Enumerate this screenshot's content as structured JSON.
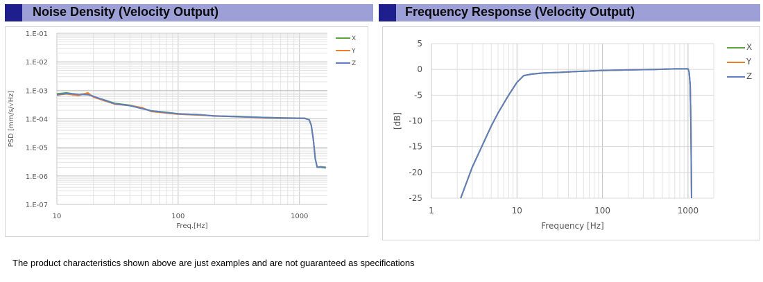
{
  "headers": {
    "left": "Noise Density (Velocity Output)",
    "right": "Frequency Response (Velocity Output)"
  },
  "footnote": "The product characteristics shown above are just examples and are not guaranteed as specifications",
  "chart_data": [
    {
      "type": "line",
      "title": "Noise Density (Velocity Output)",
      "xlabel": "Freq.[Hz]",
      "ylabel": "PSD [mm/s/√Hz]",
      "x_scale": "log",
      "y_scale": "log",
      "xlim": [
        10,
        1700
      ],
      "ylim": [
        1e-07,
        0.1
      ],
      "x_ticks": [
        "10",
        "100",
        "1000"
      ],
      "y_ticks": [
        "1.E-01",
        "1.E-02",
        "1.E-03",
        "1.E-04",
        "1.E-05",
        "1.E-06",
        "1.E-07"
      ],
      "grid": true,
      "legend": "top-right",
      "series": [
        {
          "name": "X",
          "color": "#5aa43c",
          "x": [
            10,
            12,
            15,
            18,
            20,
            25,
            30,
            40,
            50,
            60,
            80,
            100,
            150,
            200,
            300,
            500,
            700,
            1000,
            1100,
            1200,
            1250,
            1300,
            1350,
            1400,
            1500,
            1650
          ],
          "y": [
            0.00075,
            0.00082,
            0.0007,
            0.00078,
            0.0006,
            0.00045,
            0.00035,
            0.0003,
            0.00024,
            0.00019,
            0.00017,
            0.00015,
            0.00014,
            0.000125,
            0.000122,
            0.000112,
            0.000108,
            0.000106,
            0.000106,
            9.5e-05,
            6e-05,
            2e-05,
            4e-06,
            2e-06,
            2.1e-06,
            2e-06
          ]
        },
        {
          "name": "Y",
          "color": "#ed7d31",
          "x": [
            10,
            12,
            15,
            18,
            20,
            25,
            30,
            40,
            50,
            60,
            80,
            100,
            150,
            200,
            300,
            500,
            700,
            1000,
            1100,
            1200,
            1250,
            1300,
            1350,
            1400,
            1500,
            1650
          ],
          "y": [
            0.00068,
            0.00075,
            0.00065,
            0.00082,
            0.00058,
            0.00042,
            0.00033,
            0.00029,
            0.00025,
            0.00018,
            0.00016,
            0.000145,
            0.000135,
            0.000128,
            0.000118,
            0.00011,
            0.000106,
            0.000104,
            0.000105,
            9.4e-05,
            6e-05,
            2e-05,
            4e-06,
            2e-06,
            2e-06,
            1.9e-06
          ]
        },
        {
          "name": "Z",
          "color": "#5b7fbf",
          "x": [
            10,
            12,
            15,
            18,
            20,
            25,
            30,
            40,
            50,
            60,
            80,
            100,
            150,
            200,
            300,
            500,
            700,
            1000,
            1100,
            1200,
            1250,
            1300,
            1350,
            1400,
            1500,
            1650
          ],
          "y": [
            0.0007,
            0.00078,
            0.00072,
            0.0007,
            0.00062,
            0.00044,
            0.00034,
            0.00029,
            0.00023,
            0.00019,
            0.000165,
            0.00015,
            0.00014,
            0.000125,
            0.00012,
            0.000112,
            0.000107,
            0.000105,
            0.000104,
            9.3e-05,
            6e-05,
            2e-05,
            4e-06,
            2e-06,
            2e-06,
            1.9e-06
          ]
        }
      ]
    },
    {
      "type": "line",
      "title": "Frequency Response (Velocity Output)",
      "xlabel": "Frequency [Hz]",
      "ylabel": "[dB]",
      "x_scale": "log",
      "xlim": [
        1,
        2000
      ],
      "ylim": [
        -25,
        5
      ],
      "x_ticks": [
        "1",
        "10",
        "100",
        "1000"
      ],
      "y_ticks": [
        "5",
        "0",
        "-5",
        "-10",
        "-15",
        "-20",
        "-25"
      ],
      "grid": true,
      "legend": "top-right",
      "series": [
        {
          "name": "X",
          "color": "#5aa43c",
          "x": [
            2.2,
            3,
            4,
            5,
            6,
            8,
            10,
            12,
            15,
            20,
            30,
            50,
            100,
            200,
            400,
            700,
            900,
            1000,
            1030,
            1060,
            1080,
            1100
          ],
          "y": [
            -25,
            -19,
            -14.5,
            -11,
            -8.5,
            -5,
            -2.5,
            -1.2,
            -0.9,
            -0.7,
            -0.6,
            -0.4,
            -0.2,
            -0.1,
            0,
            0.1,
            0.1,
            0.1,
            -0.5,
            -3,
            -10,
            -25
          ]
        },
        {
          "name": "Y",
          "color": "#ed7d31",
          "x": [
            2.2,
            3,
            4,
            5,
            6,
            8,
            10,
            12,
            15,
            20,
            30,
            50,
            100,
            200,
            400,
            700,
            900,
            1000,
            1030,
            1060,
            1080,
            1100
          ],
          "y": [
            -25,
            -19,
            -14.5,
            -11,
            -8.5,
            -5,
            -2.5,
            -1.2,
            -0.9,
            -0.7,
            -0.6,
            -0.4,
            -0.2,
            -0.1,
            0,
            0.1,
            0.1,
            0.1,
            -0.5,
            -3,
            -10,
            -25
          ]
        },
        {
          "name": "Z",
          "color": "#5b7fbf",
          "x": [
            2.2,
            3,
            4,
            5,
            6,
            8,
            10,
            12,
            15,
            20,
            30,
            50,
            100,
            200,
            400,
            700,
            900,
            1000,
            1030,
            1060,
            1080,
            1100
          ],
          "y": [
            -25,
            -19,
            -14.5,
            -11,
            -8.5,
            -5,
            -2.5,
            -1.2,
            -0.9,
            -0.7,
            -0.6,
            -0.4,
            -0.2,
            -0.1,
            0,
            0.1,
            0.1,
            0.1,
            -0.5,
            -3,
            -10,
            -25
          ]
        }
      ]
    }
  ]
}
